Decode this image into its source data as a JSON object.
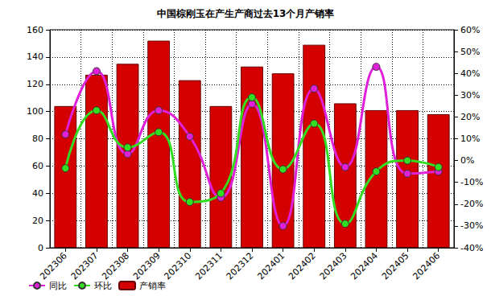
{
  "chart_data": {
    "type": "bar",
    "title": "中国棕刚玉在产生产商过去13个月产销率",
    "categories": [
      "202306",
      "202307",
      "202308",
      "202309",
      "202310",
      "202311",
      "202312",
      "202401",
      "202402",
      "202403",
      "202404",
      "202405",
      "202406"
    ],
    "ylim": [
      0,
      160
    ],
    "yticks": [
      0,
      20,
      40,
      60,
      80,
      100,
      120,
      140,
      160
    ],
    "y2lim": [
      -40,
      60
    ],
    "y2ticks": [
      {
        "value": -40,
        "label": "-40%"
      },
      {
        "value": -30,
        "label": "-30%"
      },
      {
        "value": -20,
        "label": "-20%"
      },
      {
        "value": -10,
        "label": "-10%"
      },
      {
        "value": 0,
        "label": "0%"
      },
      {
        "value": 10,
        "label": "10%"
      },
      {
        "value": 20,
        "label": "20%"
      },
      {
        "value": 30,
        "label": "30%"
      },
      {
        "value": 40,
        "label": "40%"
      },
      {
        "value": 50,
        "label": "50%"
      },
      {
        "value": 60,
        "label": "60%"
      }
    ],
    "grid": true,
    "legend": "bottom",
    "series": [
      {
        "name": "同比",
        "type": "line",
        "axis": "y2",
        "color": "#e020d8",
        "marker": "circle",
        "line_style": "solid",
        "values": [
          12,
          41,
          3,
          23,
          11,
          -17,
          26,
          -30,
          33,
          -3,
          43,
          -6,
          -5
        ]
      },
      {
        "name": "环比",
        "type": "line",
        "axis": "y2",
        "color": "#33dd22",
        "marker": "circle",
        "line_style": "solid",
        "values": [
          -3.5,
          23,
          6,
          13,
          -19,
          -15,
          29,
          -4,
          17,
          -29,
          -5,
          0,
          -3
        ]
      },
      {
        "name": "产销率",
        "type": "bar",
        "color": "#d40000",
        "values": [
          104,
          127,
          135,
          152,
          123,
          104,
          133,
          128,
          149,
          106,
          101,
          101,
          98
        ]
      }
    ]
  }
}
